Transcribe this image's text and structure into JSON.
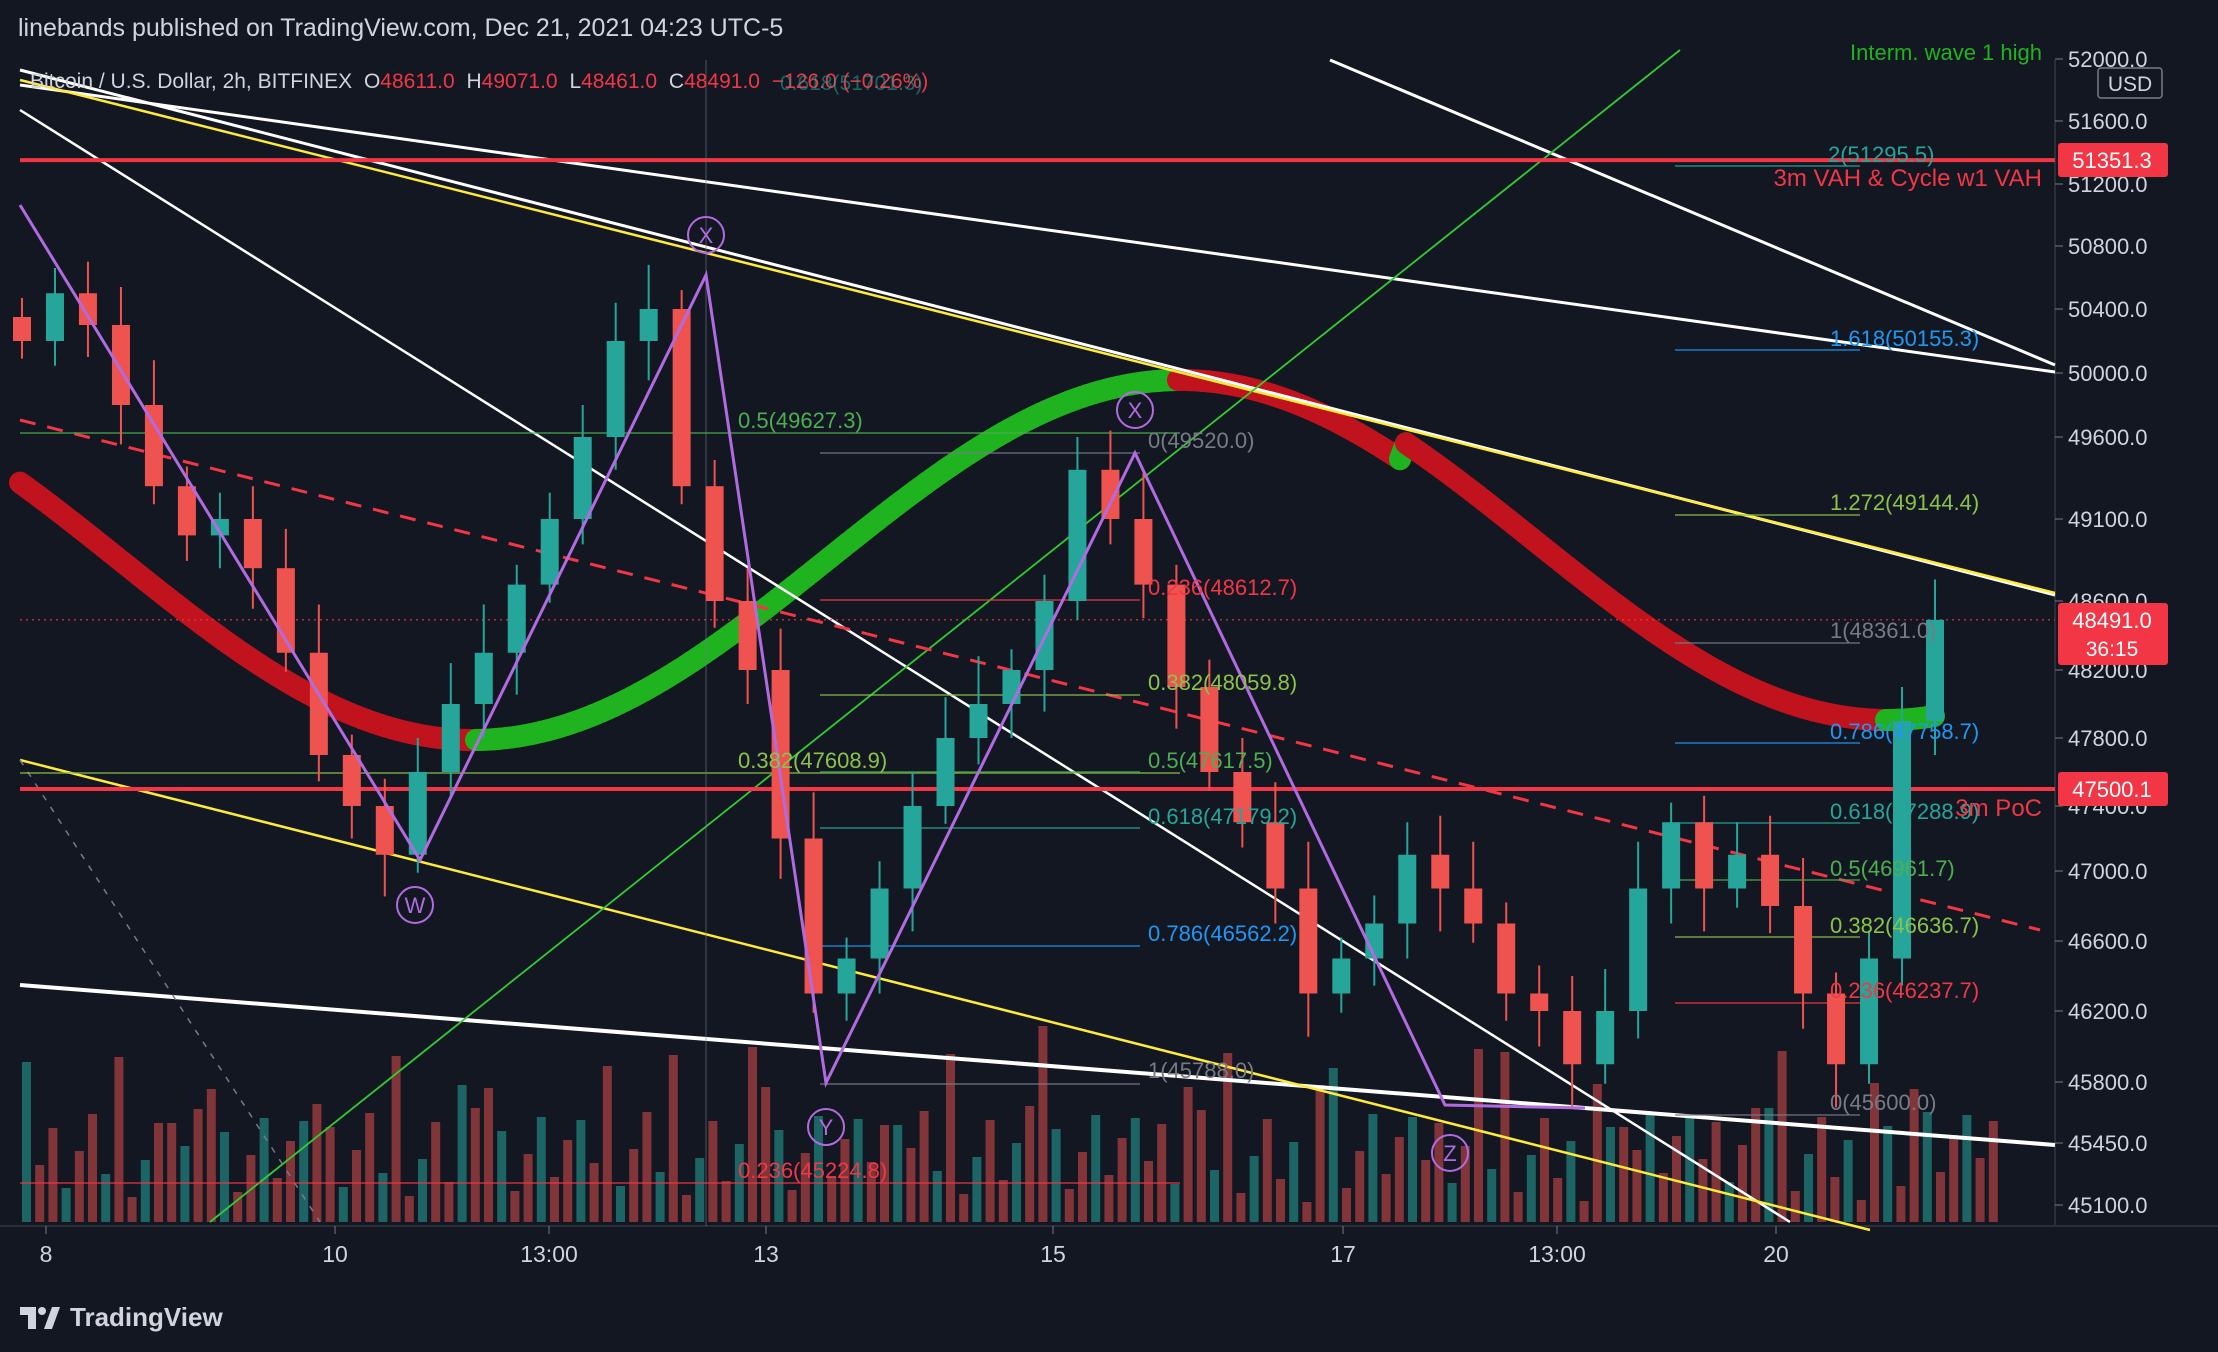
{
  "header": {
    "publisher_line": "linebands published on TradingView.com, Dec 21, 2021 04:23 UTC-5"
  },
  "symbol_legend": {
    "symbol": "Bitcoin / U.S. Dollar, 2h, BITFINEX",
    "open_label": "O",
    "open": "48611.0",
    "high_label": "H",
    "high": "49071.0",
    "low_label": "L",
    "low": "48461.0",
    "close_label": "C",
    "close": "48491.0",
    "change": "−126.0 (−0.26%)",
    "overlay_text": "0.618(51701.3)"
  },
  "price_axis": {
    "currency": "USD",
    "ticks": [
      "52000.0",
      "51600.0",
      "51200.0",
      "50800.0",
      "50400.0",
      "50000.0",
      "49600.0",
      "49100.0",
      "48600.0",
      "48200.0",
      "47800.0",
      "47400.0",
      "47000.0",
      "46600.0",
      "46200.0",
      "45800.0",
      "45450.0",
      "45100.0"
    ],
    "badges": [
      {
        "text": "51351.3",
        "color": "#f23645"
      },
      {
        "text": "48491.0",
        "sub": "36:15",
        "color": "#f23645"
      },
      {
        "text": "47500.1",
        "color": "#f23645"
      }
    ]
  },
  "time_axis": {
    "ticks": [
      "8",
      "10",
      "13:00",
      "13",
      "15",
      "17",
      "13:00",
      "20"
    ]
  },
  "annotations": {
    "wave_top": "Interm. wave 1 high",
    "vah": "3m VAH & Cycle w1 VAH",
    "poc": "3m PoC",
    "waves": [
      "W",
      "X",
      "Y",
      "X",
      "Z"
    ]
  },
  "fib_labels": [
    {
      "text": "2(51295.5)",
      "color": "#26a69a"
    },
    {
      "text": "1.618(50155.3)",
      "color": "#2196f3"
    },
    {
      "text": "1.272(49144.4)",
      "color": "#8bc34a"
    },
    {
      "text": "1(48361.0)",
      "color": "#787b86"
    },
    {
      "text": "0.786(47758.7)",
      "color": "#2196f3"
    },
    {
      "text": "0.618(47288.9)",
      "color": "#26a69a"
    },
    {
      "text": "0.5(46961.7)",
      "color": "#4caf50"
    },
    {
      "text": "0.382(46636.7)",
      "color": "#8bc34a"
    },
    {
      "text": "0.236(46237.7)",
      "color": "#f23645"
    },
    {
      "text": "0(45600.0)",
      "color": "#787b86"
    },
    {
      "text": "0.5(49627.3)",
      "color": "#4caf50"
    },
    {
      "text": "0.382(47608.9)",
      "color": "#8bc34a"
    },
    {
      "text": "0.236(45224.8)",
      "color": "#f23645"
    },
    {
      "text": "0(49520.0)",
      "color": "#787b86"
    },
    {
      "text": "0.236(48612.7)",
      "color": "#f23645"
    },
    {
      "text": "0.382(48059.8)",
      "color": "#8bc34a"
    },
    {
      "text": "0.5(47617.5)",
      "color": "#4caf50"
    },
    {
      "text": "0.618(47179.2)",
      "color": "#26a69a"
    },
    {
      "text": "0.786(46562.2)",
      "color": "#2196f3"
    },
    {
      "text": "1(45788.0)",
      "color": "#787b86"
    }
  ],
  "branding": {
    "logo_text": "TradingView"
  },
  "chart_data": {
    "type": "candlestick",
    "symbol": "BTCUSD",
    "interval": "2h",
    "exchange": "BITFINEX",
    "ylim": [
      44950,
      52300
    ],
    "price_scale_ticks": [
      52000,
      51600,
      51200,
      50800,
      50400,
      50000,
      49600,
      49100,
      48600,
      48200,
      47800,
      47400,
      47000,
      46600,
      46200,
      45800,
      45450,
      45100
    ],
    "x_ticks": [
      "8",
      "10",
      "13:00",
      "13",
      "15",
      "17",
      "13:00",
      "20"
    ],
    "last_price": 48491.0,
    "horizontal_levels": [
      {
        "label": "3m VAH & Cycle w1 VAH",
        "price": 51351.3,
        "color": "#f23645"
      },
      {
        "label": "3m PoC",
        "price": 47500.1,
        "color": "#f23645"
      }
    ],
    "wave_points": [
      {
        "label": "W",
        "price": 47050
      },
      {
        "label": "X",
        "price": 50600
      },
      {
        "label": "Y",
        "price": 45780
      },
      {
        "label": "X",
        "price": 49520
      },
      {
        "label": "Z",
        "price": 45600
      }
    ],
    "candle_closes": [
      50200,
      50500,
      50300,
      49800,
      49300,
      49000,
      49100,
      48800,
      48300,
      47700,
      47400,
      47100,
      47600,
      48000,
      48300,
      48700,
      49100,
      49600,
      50200,
      50400,
      49300,
      48600,
      48200,
      47200,
      46300,
      46500,
      46900,
      47400,
      47800,
      48000,
      48200,
      48600,
      49400,
      49100,
      48700,
      48100,
      47600,
      47300,
      46900,
      46300,
      46500,
      46700,
      47100,
      46900,
      46700,
      46300,
      46200,
      45900,
      46200,
      46900,
      47300,
      46900,
      47100,
      46800,
      46300,
      45900,
      46500,
      47900,
      48491
    ]
  }
}
